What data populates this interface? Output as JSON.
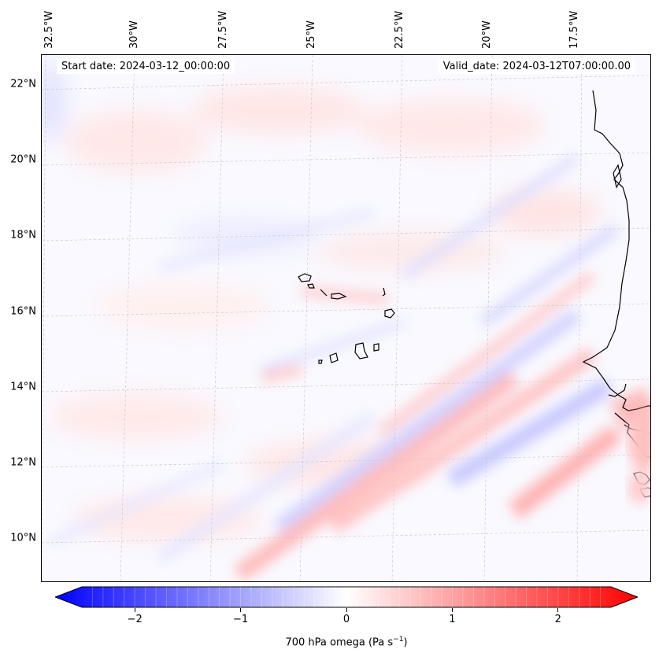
{
  "map": {
    "start_date_text": "Start date: 2024-03-12_00:00:00",
    "valid_date_text": "Valid_date: 2024-03-12T07:00:00.00",
    "lat_labels": [
      "22°N",
      "20°N",
      "18°N",
      "16°N",
      "14°N",
      "12°N",
      "10°N"
    ],
    "lon_labels": [
      "32.5°W",
      "30°W",
      "27.5°W",
      "25°W",
      "22.5°W",
      "20°W",
      "17.5°W"
    ],
    "variable": "700 hPa omega",
    "extent": {
      "lon_min": -33.0,
      "lon_max": -16.0,
      "lat_min": 8.8,
      "lat_max": 22.8
    },
    "features": [
      "Cape Verde Islands",
      "West African coastline"
    ]
  },
  "colorbar": {
    "label_main": "700 hPa omega (Pa s",
    "label_sup": "−1",
    "label_close": ")",
    "ticks": [
      {
        "value": -2,
        "label": "−2"
      },
      {
        "value": -1,
        "label": "−1"
      },
      {
        "value": 0,
        "label": "0"
      },
      {
        "value": 1,
        "label": "1"
      },
      {
        "value": 2,
        "label": "2"
      }
    ],
    "vmin": -2.5,
    "vmax": 2.5,
    "cmap": "bwr",
    "color_low": "#0000ff",
    "color_mid": "#ffffff",
    "color_high": "#ff0000"
  }
}
